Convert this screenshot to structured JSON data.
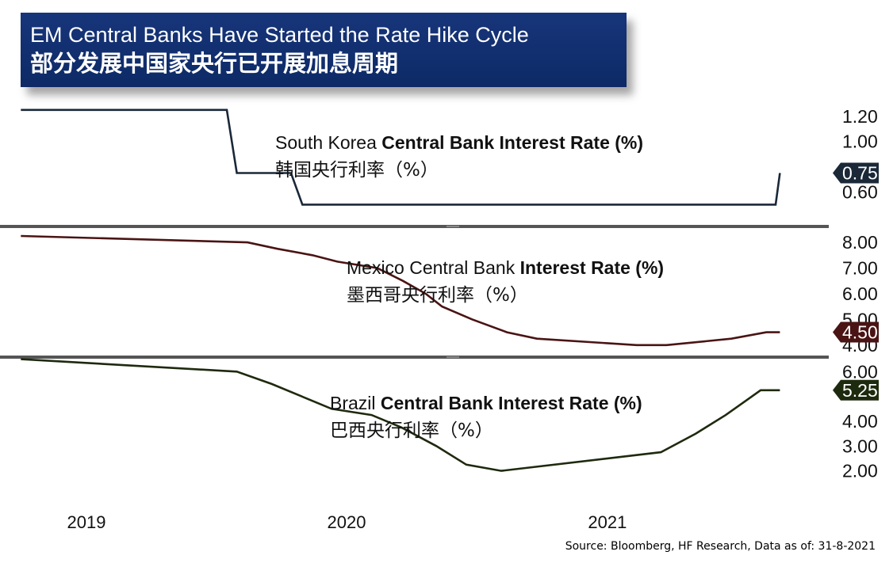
{
  "header": {
    "title_en": "EM Central Banks Have Started the Rate Hike Cycle",
    "title_zh": "部分发展中国家央行已开展加息周期"
  },
  "footer": {
    "source": "Source: Bloomberg, HF Research, Data as of: 31-8-2021"
  },
  "colors": {
    "korea": "#1a2838",
    "mexico": "#4a1414",
    "brazil": "#1e2a0e",
    "divider": "#555555"
  },
  "x_axis": {
    "ticks": [
      {
        "label": "2019",
        "date": "2019-01-01"
      },
      {
        "label": "2020",
        "date": "2020-01-01"
      },
      {
        "label": "2021",
        "date": "2021-01-01"
      }
    ]
  },
  "chart_data": [
    {
      "type": "line",
      "label_pre": "South Korea ",
      "label_bold": "Central Bank Interest Rate (%)",
      "label_zh": "韩国央行利率（%）",
      "yticks": [
        "1.20",
        "1.00",
        "0.75",
        "0.60"
      ],
      "ylim": [
        0.44,
        1.28
      ],
      "last_value_label": "0.75",
      "x": [
        "2018-10-01",
        "2019-07-17",
        "2019-07-31",
        "2019-10-15",
        "2019-10-31",
        "2020-03-16",
        "2021-08-25",
        "2021-08-31"
      ],
      "y": [
        1.25,
        1.25,
        0.75,
        0.75,
        0.5,
        0.5,
        0.5,
        0.75
      ]
    },
    {
      "type": "line",
      "label_pre": "Mexico Central Bank ",
      "label_bold": "Interest Rate (%)",
      "label_zh": "墨西哥央行利率（%）",
      "yticks": [
        "8.00",
        "7.00",
        "6.00",
        "5.00",
        "4.50",
        "4.00"
      ],
      "ylim": [
        3.9,
        8.25
      ],
      "last_value_label": "4.50",
      "x": [
        "2018-10-01",
        "2019-08-15",
        "2019-09-26",
        "2019-11-14",
        "2019-12-19",
        "2020-02-13",
        "2020-03-20",
        "2020-04-21",
        "2020-05-14",
        "2020-06-25",
        "2020-08-13",
        "2020-09-24",
        "2021-02-11",
        "2021-03-25",
        "2021-06-24",
        "2021-08-12",
        "2021-08-31"
      ],
      "y": [
        8.25,
        8.0,
        7.75,
        7.5,
        7.25,
        7.0,
        6.5,
        6.0,
        5.5,
        5.0,
        4.5,
        4.25,
        4.0,
        4.0,
        4.25,
        4.5,
        4.5
      ]
    },
    {
      "type": "line",
      "label_pre": "Brazil ",
      "label_bold": "Central Bank Interest Rate (%)",
      "label_zh": "巴西央行利率（%）",
      "yticks": [
        "6.00",
        "5.25",
        "4.00",
        "3.00",
        "2.00"
      ],
      "ylim": [
        1.7,
        6.2
      ],
      "last_value_label": "5.25",
      "x": [
        "2018-10-01",
        "2019-07-31",
        "2019-09-18",
        "2019-10-30",
        "2019-12-11",
        "2020-02-05",
        "2020-03-18",
        "2020-05-06",
        "2020-06-17",
        "2020-08-05",
        "2021-03-17",
        "2021-05-05",
        "2021-06-16",
        "2021-08-04",
        "2021-08-31"
      ],
      "y": [
        6.5,
        6.0,
        5.5,
        5.0,
        4.5,
        4.25,
        3.75,
        3.0,
        2.25,
        2.0,
        2.75,
        3.5,
        4.25,
        5.25,
        5.25
      ]
    }
  ]
}
